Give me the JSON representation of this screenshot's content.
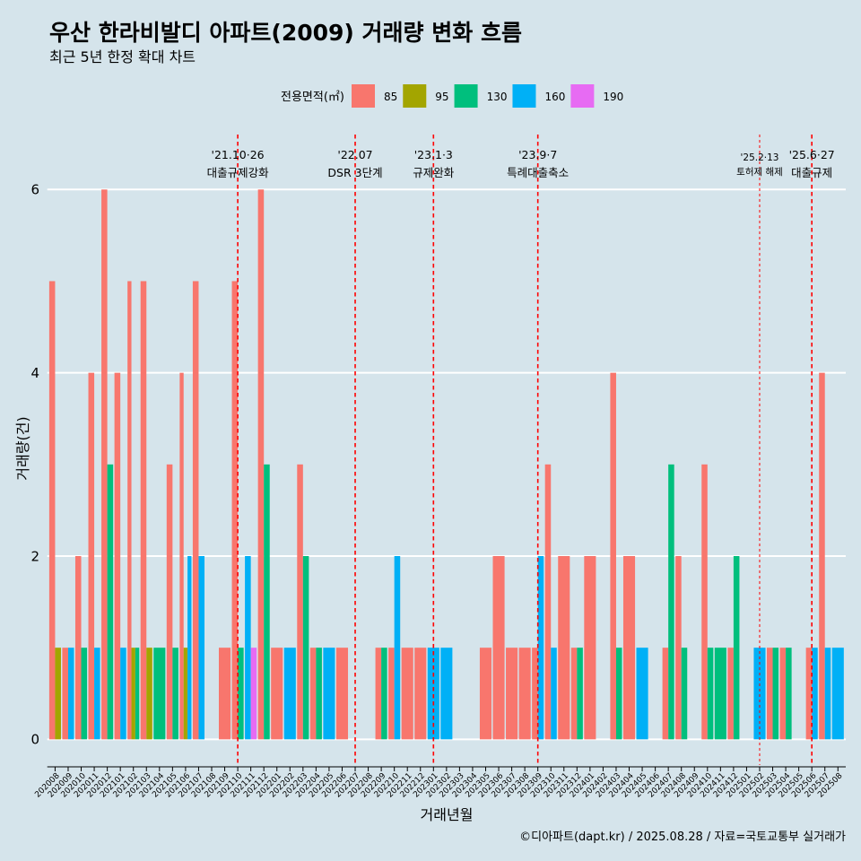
{
  "chart_data": {
    "type": "bar",
    "title": "우산 한라비발디 아파트(2009) 거래량 변화 흐름",
    "subtitle": "최근 5년 한정 확대 차트",
    "xlabel": "거래년월",
    "ylabel": "거래량(건)",
    "caption": "©디아파트(dapt.kr) / 2025.08.28 / 자료=국토교통부 실거래가",
    "ylim": [
      -0.3,
      6.6
    ],
    "yticks": [
      0,
      2,
      4,
      6
    ],
    "grid": "horizontal",
    "legend": {
      "title": "전용면적(㎡)",
      "position": "top"
    },
    "categories": [
      "202008",
      "202009",
      "202010",
      "202011",
      "202012",
      "202101",
      "202102",
      "202103",
      "202104",
      "202105",
      "202106",
      "202107",
      "202108",
      "202109",
      "202110",
      "202111",
      "202112",
      "202201",
      "202202",
      "202203",
      "202204",
      "202205",
      "202206",
      "202207",
      "202208",
      "202209",
      "202210",
      "202211",
      "202212",
      "202301",
      "202302",
      "202303",
      "202304",
      "202305",
      "202306",
      "202307",
      "202308",
      "202309",
      "202310",
      "202311",
      "202312",
      "202401",
      "202402",
      "202403",
      "202404",
      "202405",
      "202406",
      "202407",
      "202408",
      "202409",
      "202410",
      "202411",
      "202412",
      "202501",
      "202502",
      "202503",
      "202504",
      "202505",
      "202506",
      "202507",
      "202508"
    ],
    "series": [
      {
        "name": "85",
        "color": "#F8766D",
        "values": [
          5,
          1,
          2,
          4,
          6,
          4,
          5,
          5,
          null,
          3,
          4,
          5,
          null,
          1,
          5,
          null,
          6,
          1,
          null,
          3,
          1,
          null,
          1,
          null,
          null,
          1,
          1,
          1,
          1,
          null,
          null,
          null,
          null,
          1,
          2,
          1,
          1,
          1,
          3,
          2,
          1,
          2,
          null,
          4,
          2,
          null,
          null,
          1,
          2,
          null,
          3,
          null,
          1,
          null,
          null,
          1,
          1,
          null,
          1,
          4,
          null
        ]
      },
      {
        "name": "95",
        "color": "#A3A500",
        "values": [
          1,
          null,
          null,
          null,
          null,
          null,
          1,
          1,
          null,
          null,
          1,
          null,
          null,
          null,
          null,
          null,
          null,
          null,
          null,
          null,
          null,
          null,
          null,
          null,
          null,
          null,
          null,
          null,
          null,
          null,
          null,
          null,
          null,
          null,
          null,
          null,
          null,
          null,
          null,
          null,
          null,
          null,
          null,
          null,
          null,
          null,
          null,
          null,
          null,
          null,
          null,
          null,
          null,
          null,
          null,
          null,
          null,
          null,
          null,
          null,
          null
        ]
      },
      {
        "name": "130",
        "color": "#00BF7D",
        "values": [
          null,
          null,
          1,
          null,
          3,
          null,
          1,
          null,
          1,
          1,
          null,
          null,
          null,
          null,
          1,
          null,
          3,
          null,
          null,
          2,
          1,
          null,
          null,
          null,
          null,
          1,
          null,
          null,
          null,
          null,
          null,
          null,
          null,
          null,
          null,
          null,
          null,
          null,
          null,
          null,
          1,
          null,
          null,
          1,
          null,
          null,
          null,
          3,
          1,
          null,
          1,
          1,
          2,
          null,
          null,
          1,
          1,
          null,
          null,
          null,
          null
        ]
      },
      {
        "name": "160",
        "color": "#00B0F6",
        "values": [
          null,
          1,
          null,
          1,
          null,
          1,
          null,
          null,
          null,
          null,
          2,
          2,
          null,
          null,
          null,
          2,
          null,
          null,
          1,
          null,
          null,
          1,
          null,
          null,
          null,
          null,
          2,
          null,
          null,
          1,
          1,
          null,
          null,
          null,
          null,
          null,
          null,
          2,
          1,
          null,
          null,
          null,
          null,
          null,
          null,
          1,
          null,
          null,
          null,
          null,
          null,
          null,
          null,
          null,
          1,
          null,
          null,
          null,
          1,
          1,
          1
        ]
      },
      {
        "name": "190",
        "color": "#E76BF3",
        "values": [
          null,
          null,
          null,
          null,
          null,
          null,
          null,
          null,
          null,
          null,
          null,
          null,
          null,
          null,
          null,
          1,
          null,
          null,
          null,
          null,
          null,
          null,
          null,
          null,
          null,
          null,
          null,
          null,
          null,
          null,
          null,
          null,
          null,
          null,
          null,
          null,
          null,
          null,
          null,
          null,
          null,
          null,
          null,
          null,
          null,
          null,
          null,
          null,
          null,
          null,
          null,
          null,
          null,
          null,
          null,
          null,
          null,
          null,
          null,
          null,
          null
        ]
      }
    ],
    "annotations": [
      {
        "x": "202110",
        "date": "'21.10·26",
        "label": "대출규제강화",
        "line": "normal"
      },
      {
        "x": "202207",
        "date": "'22.07",
        "label": "DSR 3단계",
        "line": "normal"
      },
      {
        "x": "202301",
        "date": "'23.1·3",
        "label": "규제완화",
        "line": "normal"
      },
      {
        "x": "202309",
        "date": "'23.9·7",
        "label": "특례대출축소",
        "line": "normal"
      },
      {
        "x": "202502",
        "date": "'25.2·13",
        "label": "토허제 해제",
        "line": "thin"
      },
      {
        "x": "202506",
        "date": "'25.6·27",
        "label": "대출규제",
        "line": "normal"
      }
    ]
  },
  "theme": {
    "background": "#D5E4EB",
    "grid": "#FFFFFF",
    "axis": "#000000",
    "event_line": "#FF0000"
  }
}
